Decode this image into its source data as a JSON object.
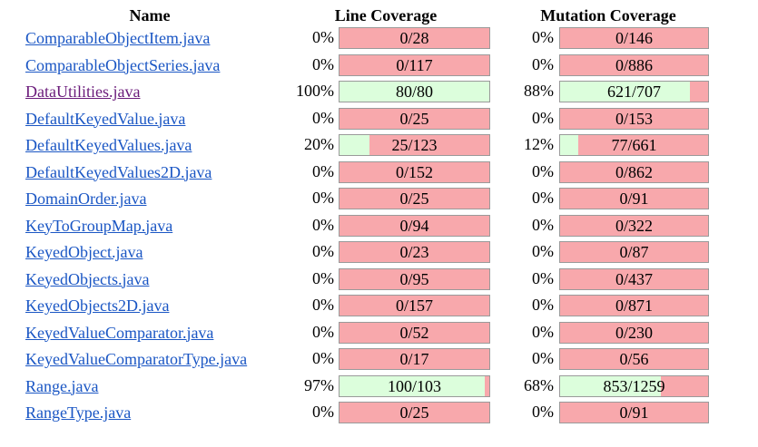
{
  "header": {
    "name": "Name",
    "line_coverage": "Line Coverage",
    "mutation_coverage": "Mutation Coverage"
  },
  "rows": [
    {
      "file": "ComparableObjectItem.java",
      "visited": false,
      "line_pct": "0%",
      "line_ratio": "0/28",
      "line_fraction": 0.0,
      "mut_pct": "0%",
      "mut_ratio": "0/146",
      "mut_fraction": 0.0
    },
    {
      "file": "ComparableObjectSeries.java",
      "visited": false,
      "line_pct": "0%",
      "line_ratio": "0/117",
      "line_fraction": 0.0,
      "mut_pct": "0%",
      "mut_ratio": "0/886",
      "mut_fraction": 0.0
    },
    {
      "file": "DataUtilities.java",
      "visited": true,
      "line_pct": "100%",
      "line_ratio": "80/80",
      "line_fraction": 1.0,
      "mut_pct": "88%",
      "mut_ratio": "621/707",
      "mut_fraction": 0.88
    },
    {
      "file": "DefaultKeyedValue.java",
      "visited": false,
      "line_pct": "0%",
      "line_ratio": "0/25",
      "line_fraction": 0.0,
      "mut_pct": "0%",
      "mut_ratio": "0/153",
      "mut_fraction": 0.0
    },
    {
      "file": "DefaultKeyedValues.java",
      "visited": false,
      "line_pct": "20%",
      "line_ratio": "25/123",
      "line_fraction": 0.2,
      "mut_pct": "12%",
      "mut_ratio": "77/661",
      "mut_fraction": 0.12
    },
    {
      "file": "DefaultKeyedValues2D.java",
      "visited": false,
      "line_pct": "0%",
      "line_ratio": "0/152",
      "line_fraction": 0.0,
      "mut_pct": "0%",
      "mut_ratio": "0/862",
      "mut_fraction": 0.0
    },
    {
      "file": "DomainOrder.java",
      "visited": false,
      "line_pct": "0%",
      "line_ratio": "0/25",
      "line_fraction": 0.0,
      "mut_pct": "0%",
      "mut_ratio": "0/91",
      "mut_fraction": 0.0
    },
    {
      "file": "KeyToGroupMap.java",
      "visited": false,
      "line_pct": "0%",
      "line_ratio": "0/94",
      "line_fraction": 0.0,
      "mut_pct": "0%",
      "mut_ratio": "0/322",
      "mut_fraction": 0.0
    },
    {
      "file": "KeyedObject.java",
      "visited": false,
      "line_pct": "0%",
      "line_ratio": "0/23",
      "line_fraction": 0.0,
      "mut_pct": "0%",
      "mut_ratio": "0/87",
      "mut_fraction": 0.0
    },
    {
      "file": "KeyedObjects.java",
      "visited": false,
      "line_pct": "0%",
      "line_ratio": "0/95",
      "line_fraction": 0.0,
      "mut_pct": "0%",
      "mut_ratio": "0/437",
      "mut_fraction": 0.0
    },
    {
      "file": "KeyedObjects2D.java",
      "visited": false,
      "line_pct": "0%",
      "line_ratio": "0/157",
      "line_fraction": 0.0,
      "mut_pct": "0%",
      "mut_ratio": "0/871",
      "mut_fraction": 0.0
    },
    {
      "file": "KeyedValueComparator.java",
      "visited": false,
      "line_pct": "0%",
      "line_ratio": "0/52",
      "line_fraction": 0.0,
      "mut_pct": "0%",
      "mut_ratio": "0/230",
      "mut_fraction": 0.0
    },
    {
      "file": "KeyedValueComparatorType.java",
      "visited": false,
      "line_pct": "0%",
      "line_ratio": "0/17",
      "line_fraction": 0.0,
      "mut_pct": "0%",
      "mut_ratio": "0/56",
      "mut_fraction": 0.0
    },
    {
      "file": "Range.java",
      "visited": false,
      "line_pct": "97%",
      "line_ratio": "100/103",
      "line_fraction": 0.97,
      "mut_pct": "68%",
      "mut_ratio": "853/1259",
      "mut_fraction": 0.68
    },
    {
      "file": "RangeType.java",
      "visited": false,
      "line_pct": "0%",
      "line_ratio": "0/25",
      "line_fraction": 0.0,
      "mut_pct": "0%",
      "mut_ratio": "0/91",
      "mut_fraction": 0.0
    }
  ],
  "colors": {
    "link": "#1a56c4",
    "link_visited": "#6a1a7a",
    "covered": "#dcfedc",
    "uncovered": "#f8a8ac",
    "bar_border": "#9a9a9a"
  }
}
